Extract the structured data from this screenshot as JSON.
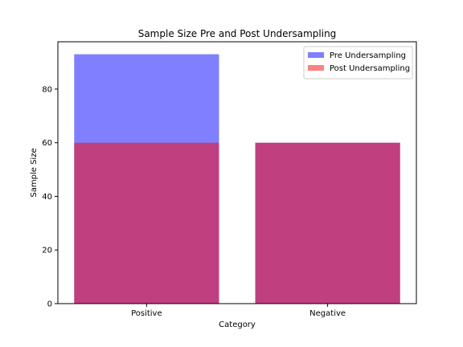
{
  "chart_data": {
    "type": "bar",
    "title": "Sample Size Pre and Post Undersampling",
    "xlabel": "Category",
    "ylabel": "Sample Size",
    "categories": [
      "Positive",
      "Negative"
    ],
    "series": [
      {
        "name": "Pre Undersampling",
        "values": [
          93,
          60
        ],
        "color": "#0000ff",
        "opacity": 0.5
      },
      {
        "name": "Post Undersampling",
        "values": [
          60,
          60
        ],
        "color": "#ff0000",
        "opacity": 0.5
      }
    ],
    "ylim": [
      0,
      97.65
    ],
    "yticks": [
      0,
      20,
      40,
      60,
      80
    ],
    "grid": false,
    "legend_position": "top-right"
  }
}
